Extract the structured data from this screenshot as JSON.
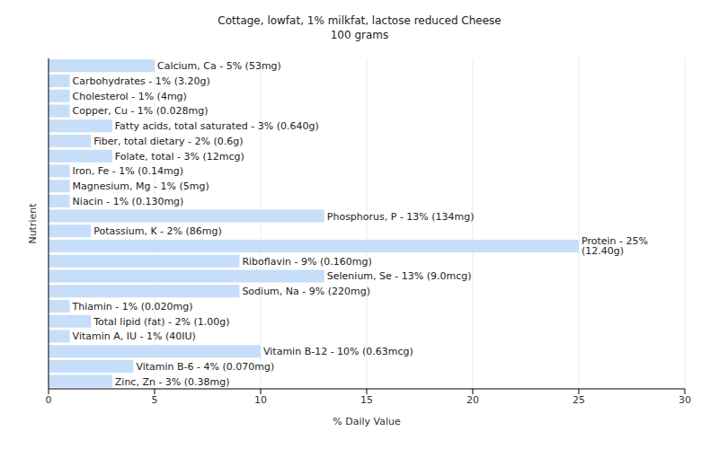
{
  "chart_data": {
    "type": "bar",
    "orientation": "horizontal",
    "title": "Cottage, lowfat, 1% milkfat, lactose reduced Cheese",
    "subtitle": "100 grams",
    "x_label": "% Daily Value",
    "y_label": "Nutrient",
    "categories": [
      "Calcium, Ca",
      "Carbohydrates",
      "Cholesterol",
      "Copper, Cu",
      "Fatty acids, total saturated",
      "Fiber, total dietary",
      "Folate, total",
      "Iron, Fe",
      "Magnesium, Mg",
      "Niacin",
      "Phosphorus, P",
      "Potassium, K",
      "Protein",
      "Riboflavin",
      "Selenium, Se",
      "Sodium, Na",
      "Thiamin",
      "Total lipid (fat)",
      "Vitamin A, IU",
      "Vitamin B-12",
      "Vitamin B-6",
      "Zinc, Zn"
    ],
    "values": [
      5,
      1,
      1,
      1,
      3,
      2,
      3,
      1,
      1,
      1,
      13,
      2,
      25,
      9,
      13,
      9,
      1,
      2,
      1,
      10,
      4,
      3
    ],
    "value_labels": [
      "Calcium, Ca - 5% (53mg)",
      "Carbohydrates - 1% (3.20g)",
      "Cholesterol - 1% (4mg)",
      "Copper, Cu - 1% (0.028mg)",
      "Fatty acids, total saturated - 3% (0.640g)",
      "Fiber, total dietary - 2% (0.6g)",
      "Folate, total - 3% (12mcg)",
      "Iron, Fe - 1% (0.14mg)",
      "Magnesium, Mg - 1% (5mg)",
      "Niacin - 1% (0.130mg)",
      "Phosphorus, P - 13% (134mg)",
      "Potassium, K - 2% (86mg)",
      "Protein - 25% (12.40g)",
      "Riboflavin - 9% (0.160mg)",
      "Selenium, Se - 13% (9.0mcg)",
      "Sodium, Na - 9% (220mg)",
      "Thiamin - 1% (0.020mg)",
      "Total lipid (fat) - 2% (1.00g)",
      "Vitamin A, IU - 1% (40IU)",
      "Vitamin B-12 - 10% (0.63mcg)",
      "Vitamin B-6 - 4% (0.070mg)",
      "Zinc, Zn - 3% (0.38mg)"
    ],
    "data_labels": true,
    "tick_labels": "x",
    "color": "#c6defa",
    "xlim": [
      0,
      30
    ],
    "xticks": [
      0,
      5,
      10,
      15,
      20,
      25,
      30
    ],
    "grid": true
  }
}
